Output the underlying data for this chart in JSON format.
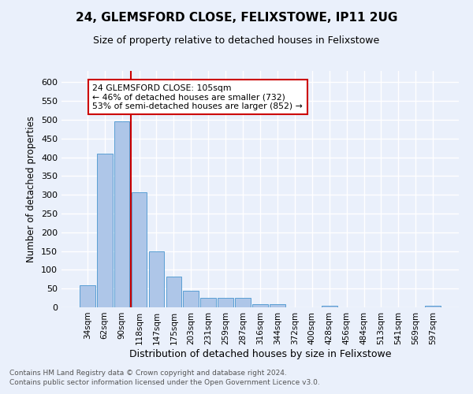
{
  "title": "24, GLEMSFORD CLOSE, FELIXSTOWE, IP11 2UG",
  "subtitle": "Size of property relative to detached houses in Felixstowe",
  "xlabel": "Distribution of detached houses by size in Felixstowe",
  "ylabel": "Number of detached properties",
  "bar_labels": [
    "34sqm",
    "62sqm",
    "90sqm",
    "118sqm",
    "147sqm",
    "175sqm",
    "203sqm",
    "231sqm",
    "259sqm",
    "287sqm",
    "316sqm",
    "344sqm",
    "372sqm",
    "400sqm",
    "428sqm",
    "456sqm",
    "484sqm",
    "513sqm",
    "541sqm",
    "569sqm",
    "597sqm"
  ],
  "bar_values": [
    58,
    410,
    495,
    307,
    150,
    82,
    45,
    25,
    25,
    25,
    8,
    8,
    0,
    0,
    5,
    0,
    0,
    0,
    0,
    0,
    5
  ],
  "bar_color": "#aec6e8",
  "bar_edge_color": "#5a9fd4",
  "vline_x": 2.5,
  "vline_color": "#cc0000",
  "ylim": [
    0,
    630
  ],
  "yticks": [
    0,
    50,
    100,
    150,
    200,
    250,
    300,
    350,
    400,
    450,
    500,
    550,
    600
  ],
  "annotation_text": "24 GLEMSFORD CLOSE: 105sqm\n← 46% of detached houses are smaller (732)\n53% of semi-detached houses are larger (852) →",
  "annotation_box_color": "#ffffff",
  "annotation_box_edge": "#cc0000",
  "footnote1": "Contains HM Land Registry data © Crown copyright and database right 2024.",
  "footnote2": "Contains public sector information licensed under the Open Government Licence v3.0.",
  "background_color": "#eaf0fb",
  "grid_color": "#ffffff"
}
